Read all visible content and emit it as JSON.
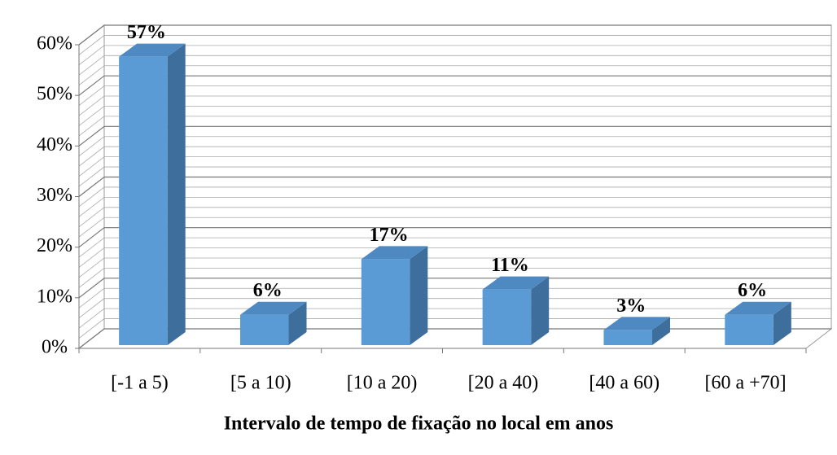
{
  "chart_data": {
    "type": "bar3d",
    "x_axis_label": "Intervalo de tempo de fixação no local em anos",
    "categories": [
      "[-1 a 5)",
      "[5 a 10)",
      "[10 a 20)",
      "[20 a 40)",
      "[40 a 60)",
      "[60 a +70]"
    ],
    "values": [
      57,
      6,
      17,
      11,
      3,
      6
    ],
    "value_labels": [
      "57%",
      "6%",
      "17%",
      "11%",
      "3%",
      "6%"
    ],
    "color": "#5b9bd5",
    "ylim": [
      0,
      60
    ],
    "yticks": [
      {
        "value": 0,
        "label": "0%"
      },
      {
        "value": 10,
        "label": "10%"
      },
      {
        "value": 20,
        "label": "20%"
      },
      {
        "value": 30,
        "label": "30%"
      },
      {
        "value": 40,
        "label": "40%"
      },
      {
        "value": 50,
        "label": "50%"
      },
      {
        "value": 60,
        "label": "60%"
      }
    ],
    "grid": true
  }
}
